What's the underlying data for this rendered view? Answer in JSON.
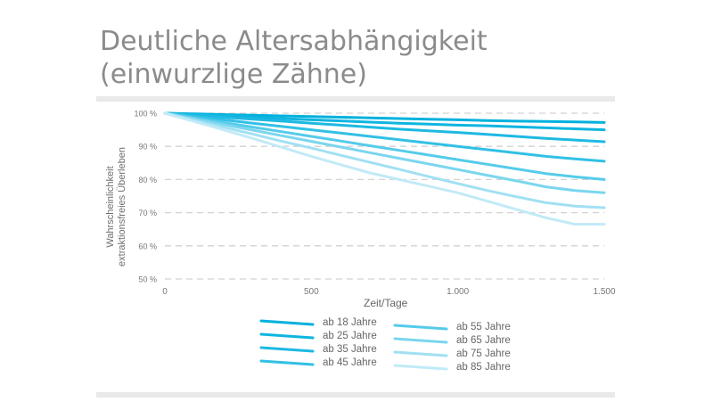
{
  "chart_data": {
    "type": "line",
    "title": "Deutliche Altersabhängigkeit (einwurzlige Zähne)",
    "title_lines": [
      "Deutliche Altersabhängigkeit",
      "(einwurzlige Zähne)"
    ],
    "xlabel": "Zeit/Tage",
    "ylabel_lines": [
      "Wahrscheinlichkeit",
      "extraktionsfreies Überleben"
    ],
    "xlim": [
      0,
      1500
    ],
    "ylim": [
      50,
      100
    ],
    "x_ticks": [
      0,
      500,
      1000,
      1500
    ],
    "x_tick_labels": [
      "0",
      "500",
      "1.000",
      "1.500"
    ],
    "y_ticks": [
      50,
      60,
      70,
      80,
      90,
      100
    ],
    "y_tick_labels": [
      "50 %",
      "60 %",
      "70 %",
      "80 %",
      "90 %",
      "100 %"
    ],
    "grid": "horizontal-dashed",
    "legend_placement": "bottom",
    "x": [
      0,
      100,
      200,
      300,
      400,
      500,
      600,
      700,
      800,
      900,
      1000,
      1100,
      1200,
      1300,
      1400,
      1500
    ],
    "series": [
      {
        "name": "ab 18 Jahre",
        "color": "#00b1dd",
        "values": [
          100,
          99.8,
          99.6,
          99.4,
          99.2,
          99.0,
          98.8,
          98.6,
          98.4,
          98.2,
          98.0,
          97.8,
          97.6,
          97.5,
          97.4,
          97.2
        ]
      },
      {
        "name": "ab 25 Jahre",
        "color": "#0eb5e0",
        "values": [
          100,
          99.6,
          99.2,
          98.8,
          98.4,
          98.0,
          97.7,
          97.3,
          97.0,
          96.7,
          96.4,
          96.2,
          95.9,
          95.6,
          95.3,
          95.0
        ]
      },
      {
        "name": "ab 35 Jahre",
        "color": "#1db9e2",
        "values": [
          100,
          99.4,
          98.8,
          98.2,
          97.6,
          97.0,
          96.4,
          95.8,
          95.2,
          94.7,
          94.2,
          93.6,
          93.0,
          92.4,
          91.9,
          91.4
        ]
      },
      {
        "name": "ab 45 Jahre",
        "color": "#32c0e5",
        "values": [
          100,
          99.0,
          98.0,
          97.0,
          96.0,
          95.0,
          94.0,
          93.0,
          92.0,
          91.0,
          90.0,
          89.0,
          88.0,
          87.0,
          86.2,
          85.5
        ]
      },
      {
        "name": "ab 55 Jahre",
        "color": "#55cbea",
        "values": [
          100,
          98.6,
          97.2,
          95.8,
          94.4,
          93.0,
          91.6,
          90.2,
          88.8,
          87.4,
          86.0,
          84.6,
          83.2,
          81.8,
          80.8,
          80.0
        ]
      },
      {
        "name": "ab 65 Jahre",
        "color": "#7bd6ee",
        "values": [
          100,
          98.3,
          96.6,
          94.9,
          93.2,
          91.5,
          89.8,
          88.1,
          86.4,
          84.7,
          83.0,
          81.3,
          79.6,
          77.8,
          76.7,
          76.0
        ]
      },
      {
        "name": "ab 75 Jahre",
        "color": "#a1e0f3",
        "values": [
          100,
          97.9,
          95.8,
          93.7,
          91.5,
          89.5,
          87.3,
          85.2,
          83.1,
          80.9,
          78.8,
          76.7,
          74.8,
          73.0,
          72.0,
          71.5
        ]
      },
      {
        "name": "ab 85 Jahre",
        "color": "#c2eaf7",
        "values": [
          100,
          97.5,
          95.0,
          92.4,
          89.7,
          87.0,
          84.5,
          82.0,
          80.0,
          78.0,
          76.0,
          73.5,
          71.0,
          68.5,
          66.5,
          66.5
        ]
      }
    ]
  }
}
